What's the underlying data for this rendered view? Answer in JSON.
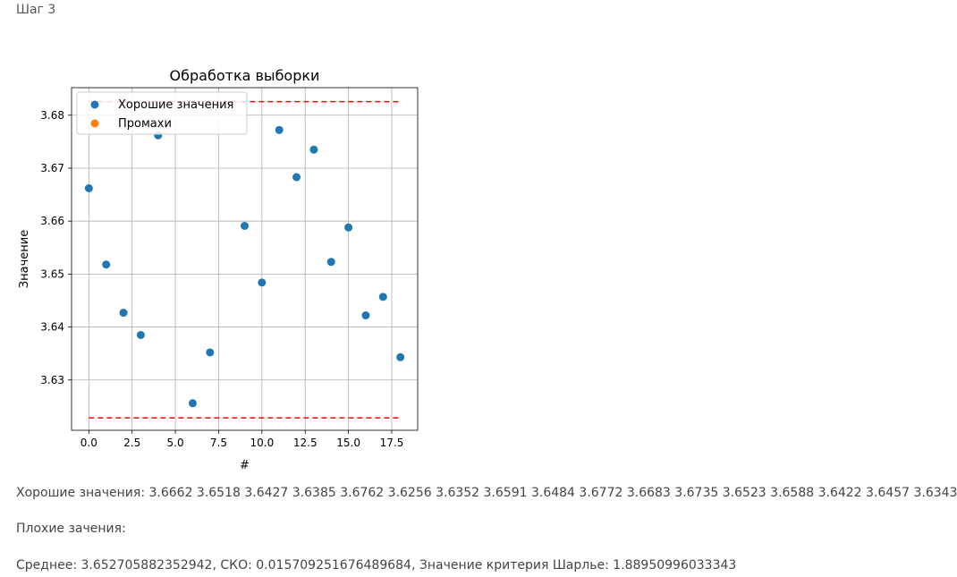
{
  "step": {
    "label": "Шаг 3"
  },
  "chart_data": {
    "type": "scatter",
    "title": "Обработка выборки",
    "xlabel": "#",
    "ylabel": "Значение",
    "xlim": [
      -1,
      19
    ],
    "ylim": [
      3.6205,
      3.6852
    ],
    "x_ticks": [
      0,
      2.5,
      5,
      7.5,
      10,
      12.5,
      15,
      17.5
    ],
    "x_tick_labels": [
      "0.0",
      "2.5",
      "5.0",
      "7.5",
      "10.0",
      "12.5",
      "15.0",
      "17.5"
    ],
    "y_ticks": [
      3.63,
      3.64,
      3.65,
      3.66,
      3.67,
      3.68
    ],
    "y_tick_labels": [
      "3.63",
      "3.64",
      "3.65",
      "3.66",
      "3.67",
      "3.68"
    ],
    "grid": true,
    "legend_position": "top-left",
    "series": [
      {
        "name": "Хорошие значения",
        "color": "#1f77b4",
        "x": [
          0,
          1,
          2,
          3,
          4,
          6,
          7,
          9,
          10,
          11,
          12,
          13,
          14,
          15,
          16,
          17,
          18
        ],
        "y": [
          3.6662,
          3.6518,
          3.6427,
          3.6385,
          3.6762,
          3.6256,
          3.6352,
          3.6591,
          3.6484,
          3.6772,
          3.6683,
          3.6735,
          3.6523,
          3.6588,
          3.6422,
          3.6457,
          3.6343
        ]
      },
      {
        "name": "Промахи",
        "color": "#ff7f0e",
        "x": [],
        "y": []
      }
    ],
    "reference_lines": [
      {
        "y": 3.68257,
        "x_range": [
          0,
          18
        ],
        "color": "#ff0000",
        "style": "dashed"
      },
      {
        "y": 3.62284,
        "x_range": [
          0,
          18
        ],
        "color": "#ff0000",
        "style": "dashed"
      }
    ]
  },
  "results": {
    "good_values": "Хорошие значения: 3.6662 3.6518 3.6427 3.6385 3.6762 3.6256 3.6352 3.6591 3.6484 3.6772 3.6683 3.6735 3.6523 3.6588 3.6422 3.6457 3.6343",
    "bad_values": "Плохие зачения:",
    "stats": "Среднее: 3.652705882352942, СКО: 0.015709251676489684, Значение критерия Шарлье: 1.88950996033343"
  }
}
